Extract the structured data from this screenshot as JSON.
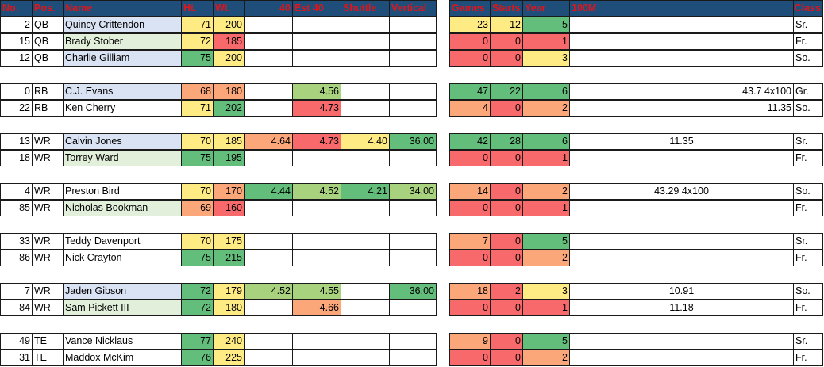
{
  "colors": {
    "header_bg": "#1f4e7a",
    "header_text": "#e0151a",
    "name_blue": "#dae3f3",
    "name_green": "#e2efda",
    "heat_green": "#63be7b",
    "heat_lightgreen": "#a9d27f",
    "heat_yellow": "#ffeb84",
    "heat_orange": "#fca77a",
    "heat_red": "#f8696b"
  },
  "header": {
    "no": "No.",
    "pos": "Pos.",
    "name": "Name",
    "ht": "Ht.",
    "wt": "Wt.",
    "forty": "40",
    "est40": "Est 40",
    "shuttle": "Shuttle",
    "vertical": "Vertical",
    "games": "Games",
    "starts": "Starts",
    "year": "Year",
    "m100": "100M",
    "class": "Class"
  },
  "players": [
    {
      "no": "2",
      "pos": "QB",
      "name": "Quincy Crittendon",
      "nameColor": "blue",
      "ht": "71",
      "htColor": "yellow",
      "wt": "200",
      "wtColor": "yellow",
      "forty": "",
      "fortyColor": "",
      "est40": "",
      "est40Color": "",
      "shuttle": "",
      "shuttleColor": "",
      "vertical": "",
      "verticalColor": "",
      "games": "23",
      "gamesColor": "yellow",
      "starts": "12",
      "startsColor": "yellow",
      "year": "5",
      "yearColor": "green",
      "m100": "",
      "m100Align": "r",
      "cls": "Sr."
    },
    {
      "no": "15",
      "pos": "QB",
      "name": "Brady Stober",
      "nameColor": "green",
      "ht": "72",
      "htColor": "yellow",
      "wt": "185",
      "wtColor": "red",
      "forty": "",
      "fortyColor": "",
      "est40": "",
      "est40Color": "",
      "shuttle": "",
      "shuttleColor": "",
      "vertical": "",
      "verticalColor": "",
      "games": "0",
      "gamesColor": "red",
      "starts": "0",
      "startsColor": "red",
      "year": "1",
      "yearColor": "red",
      "m100": "",
      "m100Align": "r",
      "cls": "Fr."
    },
    {
      "no": "12",
      "pos": "QB",
      "name": "Charlie Gilliam",
      "nameColor": "blue",
      "ht": "75",
      "htColor": "green",
      "wt": "200",
      "wtColor": "yellow",
      "forty": "",
      "fortyColor": "",
      "est40": "",
      "est40Color": "",
      "shuttle": "",
      "shuttleColor": "",
      "vertical": "",
      "verticalColor": "",
      "games": "0",
      "gamesColor": "red",
      "starts": "0",
      "startsColor": "red",
      "year": "3",
      "yearColor": "yellow",
      "m100": "",
      "m100Align": "r",
      "cls": "So."
    },
    {
      "no": "0",
      "pos": "RB",
      "name": "C.J. Evans",
      "nameColor": "blue",
      "ht": "68",
      "htColor": "orange",
      "wt": "180",
      "wtColor": "orange",
      "forty": "",
      "fortyColor": "",
      "est40": "4.56",
      "est40Color": "lightgreen",
      "shuttle": "",
      "shuttleColor": "",
      "vertical": "",
      "verticalColor": "",
      "games": "47",
      "gamesColor": "green",
      "starts": "22",
      "startsColor": "green",
      "year": "6",
      "yearColor": "green",
      "m100": "43.7 4x100",
      "m100Align": "r",
      "cls": "Gr."
    },
    {
      "no": "22",
      "pos": "RB",
      "name": "Ken Cherry",
      "nameColor": "none",
      "ht": "71",
      "htColor": "yellow",
      "wt": "202",
      "wtColor": "green",
      "forty": "",
      "fortyColor": "",
      "est40": "4.73",
      "est40Color": "red",
      "shuttle": "",
      "shuttleColor": "",
      "vertical": "",
      "verticalColor": "",
      "games": "4",
      "gamesColor": "orange",
      "starts": "0",
      "startsColor": "red",
      "year": "2",
      "yearColor": "orange",
      "m100": "11.35",
      "m100Align": "r",
      "cls": "So."
    },
    {
      "no": "13",
      "pos": "WR",
      "name": "Calvin Jones",
      "nameColor": "blue",
      "ht": "70",
      "htColor": "yellow",
      "wt": "185",
      "wtColor": "yellow",
      "forty": "4.64",
      "fortyColor": "orange",
      "est40": "4.73",
      "est40Color": "red",
      "shuttle": "4.40",
      "shuttleColor": "yellow",
      "vertical": "36.00",
      "verticalColor": "green",
      "games": "42",
      "gamesColor": "green",
      "starts": "28",
      "startsColor": "green",
      "year": "6",
      "yearColor": "green",
      "m100": "11.35",
      "m100Align": "c",
      "cls": "Sr."
    },
    {
      "no": "18",
      "pos": "WR",
      "name": "Torrey Ward",
      "nameColor": "green",
      "ht": "75",
      "htColor": "green",
      "wt": "195",
      "wtColor": "green",
      "forty": "",
      "fortyColor": "",
      "est40": "",
      "est40Color": "",
      "shuttle": "",
      "shuttleColor": "",
      "vertical": "",
      "verticalColor": "",
      "games": "0",
      "gamesColor": "red",
      "starts": "0",
      "startsColor": "red",
      "year": "1",
      "yearColor": "red",
      "m100": "",
      "m100Align": "c",
      "cls": "Fr."
    },
    {
      "no": "4",
      "pos": "WR",
      "name": "Preston Bird",
      "nameColor": "none",
      "ht": "70",
      "htColor": "yellow",
      "wt": "170",
      "wtColor": "orange",
      "forty": "4.44",
      "fortyColor": "green",
      "est40": "4.52",
      "est40Color": "lightgreen",
      "shuttle": "4.21",
      "shuttleColor": "green",
      "vertical": "34.00",
      "verticalColor": "lightgreen",
      "games": "14",
      "gamesColor": "orange",
      "starts": "0",
      "startsColor": "red",
      "year": "2",
      "yearColor": "orange",
      "m100": "43.29 4x100",
      "m100Align": "c",
      "cls": "So."
    },
    {
      "no": "85",
      "pos": "WR",
      "name": "Nicholas Bookman",
      "nameColor": "green",
      "ht": "69",
      "htColor": "orange",
      "wt": "160",
      "wtColor": "red",
      "forty": "",
      "fortyColor": "",
      "est40": "",
      "est40Color": "",
      "shuttle": "",
      "shuttleColor": "",
      "vertical": "",
      "verticalColor": "",
      "games": "0",
      "gamesColor": "red",
      "starts": "0",
      "startsColor": "red",
      "year": "1",
      "yearColor": "red",
      "m100": "",
      "m100Align": "c",
      "cls": "Fr."
    },
    {
      "no": "33",
      "pos": "WR",
      "name": "Teddy Davenport",
      "nameColor": "none",
      "ht": "70",
      "htColor": "yellow",
      "wt": "175",
      "wtColor": "yellow",
      "forty": "",
      "fortyColor": "",
      "est40": "",
      "est40Color": "",
      "shuttle": "",
      "shuttleColor": "",
      "vertical": "",
      "verticalColor": "",
      "games": "7",
      "gamesColor": "orange",
      "starts": "0",
      "startsColor": "red",
      "year": "5",
      "yearColor": "green",
      "m100": "",
      "m100Align": "c",
      "cls": "Sr."
    },
    {
      "no": "86",
      "pos": "WR",
      "name": "Nick Crayton",
      "nameColor": "none",
      "ht": "75",
      "htColor": "green",
      "wt": "215",
      "wtColor": "green",
      "forty": "",
      "fortyColor": "",
      "est40": "",
      "est40Color": "",
      "shuttle": "",
      "shuttleColor": "",
      "vertical": "",
      "verticalColor": "",
      "games": "0",
      "gamesColor": "red",
      "starts": "0",
      "startsColor": "red",
      "year": "2",
      "yearColor": "orange",
      "m100": "",
      "m100Align": "c",
      "cls": "Fr."
    },
    {
      "no": "7",
      "pos": "WR",
      "name": "Jaden Gibson",
      "nameColor": "blue",
      "ht": "72",
      "htColor": "green",
      "wt": "179",
      "wtColor": "yellow",
      "forty": "4.52",
      "fortyColor": "lightgreen",
      "est40": "4.55",
      "est40Color": "lightgreen",
      "shuttle": "",
      "shuttleColor": "",
      "vertical": "36.00",
      "verticalColor": "green",
      "games": "18",
      "gamesColor": "orange",
      "starts": "2",
      "startsColor": "red",
      "year": "3",
      "yearColor": "yellow",
      "m100": "10.91",
      "m100Align": "c",
      "cls": "So."
    },
    {
      "no": "84",
      "pos": "WR",
      "name": "Sam Pickett III",
      "nameColor": "green",
      "ht": "72",
      "htColor": "green",
      "wt": "180",
      "wtColor": "yellow",
      "forty": "",
      "fortyColor": "",
      "est40": "4.66",
      "est40Color": "orange",
      "shuttle": "",
      "shuttleColor": "",
      "vertical": "",
      "verticalColor": "",
      "games": "0",
      "gamesColor": "red",
      "starts": "0",
      "startsColor": "red",
      "year": "1",
      "yearColor": "red",
      "m100": "11.18",
      "m100Align": "c",
      "cls": "Fr."
    },
    {
      "no": "49",
      "pos": "TE",
      "name": "Vance Nicklaus",
      "nameColor": "none",
      "ht": "77",
      "htColor": "green",
      "wt": "240",
      "wtColor": "yellow",
      "forty": "",
      "fortyColor": "",
      "est40": "",
      "est40Color": "",
      "shuttle": "",
      "shuttleColor": "",
      "vertical": "",
      "verticalColor": "",
      "games": "9",
      "gamesColor": "orange",
      "starts": "0",
      "startsColor": "red",
      "year": "5",
      "yearColor": "green",
      "m100": "",
      "m100Align": "c",
      "cls": "Sr."
    },
    {
      "no": "31",
      "pos": "TE",
      "name": "Maddox McKim",
      "nameColor": "none",
      "ht": "76",
      "htColor": "green",
      "wt": "225",
      "wtColor": "yellow",
      "forty": "",
      "fortyColor": "",
      "est40": "",
      "est40Color": "",
      "shuttle": "",
      "shuttleColor": "",
      "vertical": "",
      "verticalColor": "",
      "games": "0",
      "gamesColor": "red",
      "starts": "0",
      "startsColor": "red",
      "year": "2",
      "yearColor": "orange",
      "m100": "",
      "m100Align": "c",
      "cls": "Fr."
    }
  ]
}
